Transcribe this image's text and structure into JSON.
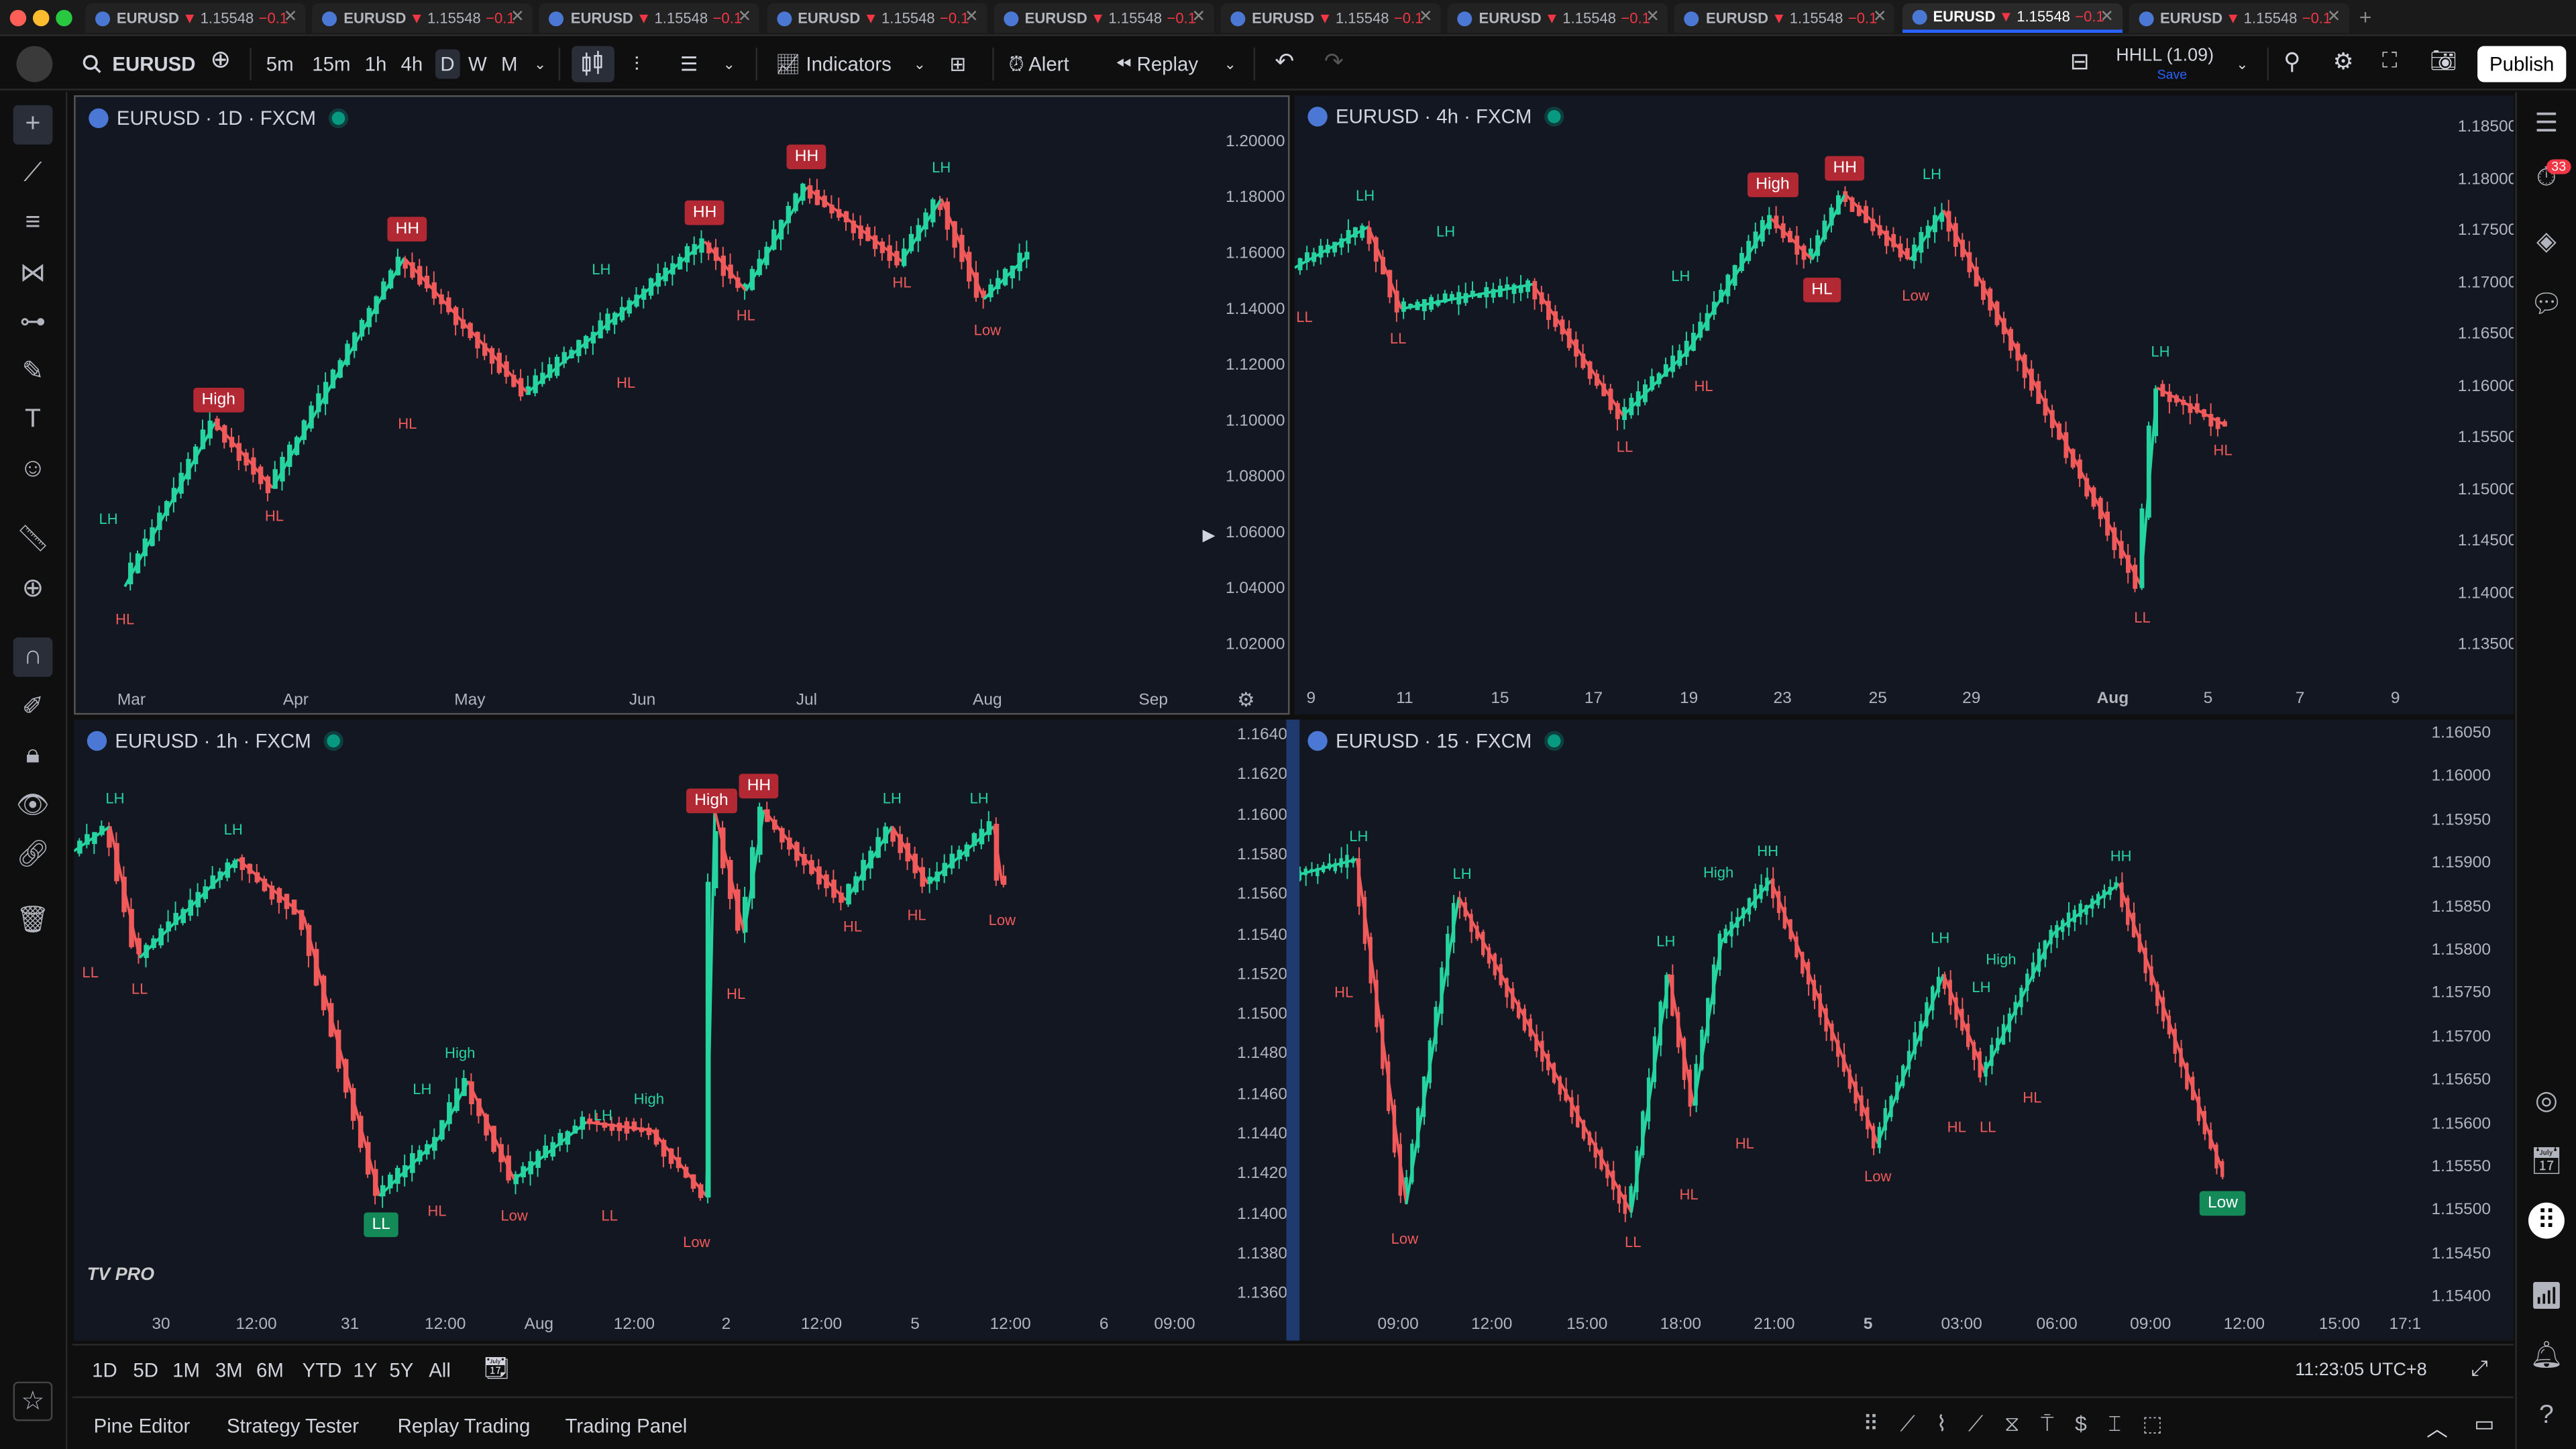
{
  "colors": {
    "up": "#26d4a0",
    "down": "#f05a5a",
    "pane_bg": "#131722",
    "accent": "#2962ff",
    "live": "#089981"
  },
  "tabs": [
    {
      "symbol": "EURUSD",
      "price": "1.15548",
      "change": "−0.1"
    },
    {
      "symbol": "EURUSD",
      "price": "1.15548",
      "change": "−0.1"
    },
    {
      "symbol": "EURUSD",
      "price": "1.15548",
      "change": "−0.1"
    },
    {
      "symbol": "EURUSD",
      "price": "1.15548",
      "change": "−0.1"
    },
    {
      "symbol": "EURUSD",
      "price": "1.15548",
      "change": "−0.1"
    },
    {
      "symbol": "EURUSD",
      "price": "1.15548",
      "change": "−0.1"
    },
    {
      "symbol": "EURUSD",
      "price": "1.15548",
      "change": "−0.1"
    },
    {
      "symbol": "EURUSD",
      "price": "1.15548",
      "change": "−0.1"
    },
    {
      "symbol": "EURUSD",
      "price": "1.15548",
      "change": "−0.1"
    },
    {
      "symbol": "EURUSD",
      "price": "1.15548",
      "change": "−0.1"
    }
  ],
  "toolbar": {
    "symbol": "EURUSD",
    "intervals": [
      "5m",
      "15m",
      "1h",
      "4h",
      "D",
      "W",
      "M"
    ],
    "selected_interval": "D",
    "indicators": "Indicators",
    "alert": "Alert",
    "replay": "Replay",
    "layout_name": "HHLL (1.09)",
    "layout_sub": "Save",
    "publish": "Publish"
  },
  "panes": [
    {
      "title": "EURUSD · 1D · FXCM",
      "y_labels": [
        "1.20000",
        "1.18000",
        "1.16000",
        "1.14000",
        "1.12000",
        "1.10000",
        "1.08000",
        "1.06000",
        "1.04000",
        "1.02000"
      ],
      "x_labels": [
        "Mar",
        "Apr",
        "May",
        "Jun",
        "Jul",
        "Aug",
        "Sep"
      ],
      "marks": [
        {
          "text": "LH",
          "type": "lab",
          "c": "g"
        },
        {
          "text": "HL",
          "type": "lab",
          "c": "r"
        },
        {
          "text": "High",
          "type": "box",
          "c": "r"
        },
        {
          "text": "HL",
          "type": "lab",
          "c": "r"
        },
        {
          "text": "HH",
          "type": "box",
          "c": "r"
        },
        {
          "text": "HL",
          "type": "lab",
          "c": "r"
        },
        {
          "text": "LH",
          "type": "lab",
          "c": "g"
        },
        {
          "text": "HL",
          "type": "lab",
          "c": "r"
        },
        {
          "text": "HH",
          "type": "box",
          "c": "r"
        },
        {
          "text": "HL",
          "type": "lab",
          "c": "r"
        },
        {
          "text": "HH",
          "type": "box",
          "c": "r"
        },
        {
          "text": "LH",
          "type": "lab",
          "c": "g"
        },
        {
          "text": "HL",
          "type": "lab",
          "c": "r"
        },
        {
          "text": "Low",
          "type": "lab",
          "c": "r"
        }
      ]
    },
    {
      "title": "EURUSD · 4h · FXCM",
      "y_labels": [
        "1.18500",
        "1.18000",
        "1.17500",
        "1.17000",
        "1.16500",
        "1.16000",
        "1.15500",
        "1.15000",
        "1.14500",
        "1.14000",
        "1.13500"
      ],
      "x_labels": [
        "9",
        "11",
        "15",
        "17",
        "19",
        "23",
        "25",
        "29",
        "Aug",
        "5",
        "7",
        "9"
      ],
      "marks": [
        {
          "text": "LL",
          "type": "lab",
          "c": "r"
        },
        {
          "text": "LH",
          "type": "lab",
          "c": "g"
        },
        {
          "text": "LL",
          "type": "lab",
          "c": "r"
        },
        {
          "text": "LH",
          "type": "lab",
          "c": "g"
        },
        {
          "text": "LL",
          "type": "lab",
          "c": "r"
        },
        {
          "text": "LH",
          "type": "lab",
          "c": "g"
        },
        {
          "text": "HL",
          "type": "lab",
          "c": "r"
        },
        {
          "text": "High",
          "type": "box",
          "c": "r"
        },
        {
          "text": "HH",
          "type": "box",
          "c": "r"
        },
        {
          "text": "HL",
          "type": "box",
          "c": "r"
        },
        {
          "text": "LH",
          "type": "lab",
          "c": "g"
        },
        {
          "text": "Low",
          "type": "lab",
          "c": "r"
        },
        {
          "text": "LL",
          "type": "lab",
          "c": "r"
        },
        {
          "text": "LH",
          "type": "lab",
          "c": "g"
        },
        {
          "text": "HL",
          "type": "lab",
          "c": "r"
        }
      ]
    },
    {
      "title": "EURUSD · 1h · FXCM",
      "y_labels": [
        "1.16400",
        "1.16200",
        "1.16000",
        "1.15800",
        "1.15600",
        "1.15400",
        "1.15200",
        "1.15000",
        "1.14800",
        "1.14600",
        "1.14400",
        "1.14200",
        "1.14000",
        "1.13800",
        "1.13600"
      ],
      "x_labels": [
        "30",
        "12:00",
        "31",
        "12:00",
        "Aug",
        "12:00",
        "2",
        "12:00",
        "5",
        "12:00",
        "6",
        "09:00"
      ],
      "marks": [
        {
          "text": "LH",
          "type": "lab",
          "c": "g"
        },
        {
          "text": "LL",
          "type": "lab",
          "c": "r"
        },
        {
          "text": "LL",
          "type": "lab",
          "c": "r"
        },
        {
          "text": "LH",
          "type": "lab",
          "c": "g"
        },
        {
          "text": "LL",
          "type": "box",
          "c": "g"
        },
        {
          "text": "LH",
          "type": "lab",
          "c": "g"
        },
        {
          "text": "HL",
          "type": "lab",
          "c": "r"
        },
        {
          "text": "High",
          "type": "lab",
          "c": "g"
        },
        {
          "text": "Low",
          "type": "lab",
          "c": "r"
        },
        {
          "text": "LH",
          "type": "lab",
          "c": "g"
        },
        {
          "text": "LL",
          "type": "lab",
          "c": "r"
        },
        {
          "text": "High",
          "type": "lab",
          "c": "g"
        },
        {
          "text": "Low",
          "type": "lab",
          "c": "r"
        },
        {
          "text": "High",
          "type": "box",
          "c": "r"
        },
        {
          "text": "HH",
          "type": "box",
          "c": "r"
        },
        {
          "text": "HL",
          "type": "lab",
          "c": "r"
        },
        {
          "text": "HL",
          "type": "lab",
          "c": "r"
        },
        {
          "text": "LH",
          "type": "lab",
          "c": "g"
        },
        {
          "text": "HL",
          "type": "lab",
          "c": "r"
        },
        {
          "text": "LH",
          "type": "lab",
          "c": "g"
        },
        {
          "text": "Low",
          "type": "lab",
          "c": "r"
        }
      ]
    },
    {
      "title": "EURUSD · 15 · FXCM",
      "y_labels": [
        "1.16050",
        "1.16000",
        "1.15950",
        "1.15900",
        "1.15850",
        "1.15800",
        "1.15750",
        "1.15700",
        "1.15650",
        "1.15600",
        "1.15550",
        "1.15500",
        "1.15450",
        "1.15400"
      ],
      "x_labels": [
        "09:00",
        "12:00",
        "15:00",
        "18:00",
        "21:00",
        "5",
        "03:00",
        "06:00",
        "09:00",
        "12:00",
        "15:00",
        "17:1"
      ],
      "marks": [
        {
          "text": "LH",
          "type": "lab",
          "c": "g"
        },
        {
          "text": "HL",
          "type": "lab",
          "c": "r"
        },
        {
          "text": "Low",
          "type": "lab",
          "c": "r"
        },
        {
          "text": "LH",
          "type": "lab",
          "c": "g"
        },
        {
          "text": "LL",
          "type": "lab",
          "c": "r"
        },
        {
          "text": "LH",
          "type": "lab",
          "c": "g"
        },
        {
          "text": "HL",
          "type": "lab",
          "c": "r"
        },
        {
          "text": "High",
          "type": "lab",
          "c": "g"
        },
        {
          "text": "HH",
          "type": "lab",
          "c": "g"
        },
        {
          "text": "HL",
          "type": "lab",
          "c": "r"
        },
        {
          "text": "Low",
          "type": "lab",
          "c": "r"
        },
        {
          "text": "LH",
          "type": "lab",
          "c": "g"
        },
        {
          "text": "HL",
          "type": "lab",
          "c": "r"
        },
        {
          "text": "LH",
          "type": "lab",
          "c": "g"
        },
        {
          "text": "LL",
          "type": "lab",
          "c": "r"
        },
        {
          "text": "High",
          "type": "lab",
          "c": "g"
        },
        {
          "text": "HL",
          "type": "lab",
          "c": "r"
        },
        {
          "text": "HH",
          "type": "lab",
          "c": "g"
        },
        {
          "text": "Low",
          "type": "box",
          "c": "g"
        }
      ]
    }
  ],
  "range_bar": {
    "ranges": [
      "1D",
      "5D",
      "1M",
      "3M",
      "6M",
      "YTD",
      "1Y",
      "5Y",
      "All"
    ],
    "clock": "11:23:05 UTC+8"
  },
  "bottom_tabs": [
    "Pine Editor",
    "Strategy Tester",
    "Replay Trading",
    "Trading Panel"
  ],
  "notifications": "33",
  "watermark": "TV PRO"
}
